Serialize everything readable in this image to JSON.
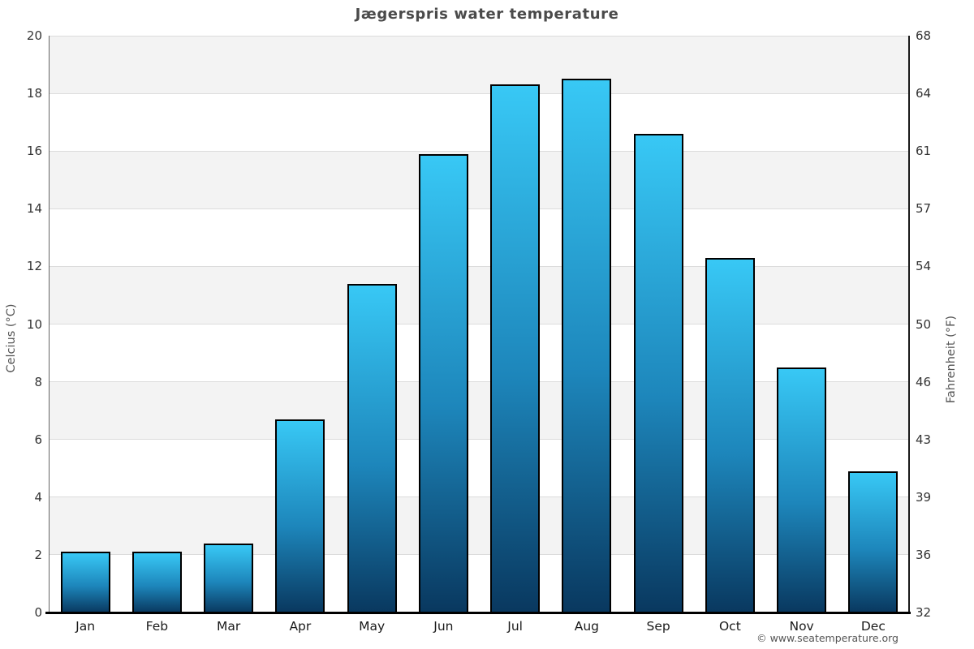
{
  "page": {
    "attribution": "© www.seatemperature.org"
  },
  "chart_data": {
    "type": "bar",
    "title": "Jægerspris water temperature",
    "categories": [
      "Jan",
      "Feb",
      "Mar",
      "Apr",
      "May",
      "Jun",
      "Jul",
      "Aug",
      "Sep",
      "Oct",
      "Nov",
      "Dec"
    ],
    "values": [
      2.1,
      2.1,
      2.4,
      6.7,
      11.4,
      15.9,
      18.3,
      18.5,
      16.6,
      12.3,
      8.5,
      4.9
    ],
    "ylabel_left": "Celcius (°C)",
    "ylabel_right": "Fahrenheit (°F)",
    "ylim": [
      0,
      20
    ],
    "yticks_celsius": [
      0,
      2,
      4,
      6,
      8,
      10,
      12,
      14,
      16,
      18,
      20
    ],
    "yticks_fahrenheit": [
      32,
      36,
      39,
      43,
      46,
      50,
      54,
      57,
      61,
      64,
      68
    ],
    "xlabel": "",
    "legend": "none",
    "grid": "horizontal gridlines every 2°C with alternating shaded bands",
    "colors": {
      "bar_gradient_top": "#38c8f5",
      "bar_gradient_mid": "#1d86bb",
      "bar_gradient_bottom": "#09385f",
      "bar_border": "#000000",
      "band_gray": "#f3f3f3",
      "gridline": "#dcdcdc",
      "axis_bottom": "#000000",
      "spine_left": "#666666",
      "spine_right": "#1a1a1a",
      "title_text": "#4a4a4a",
      "tick_text": "#333333",
      "month_text": "#1a1a1a",
      "axis_label_text": "#555555",
      "attribution_text": "#555555"
    }
  }
}
